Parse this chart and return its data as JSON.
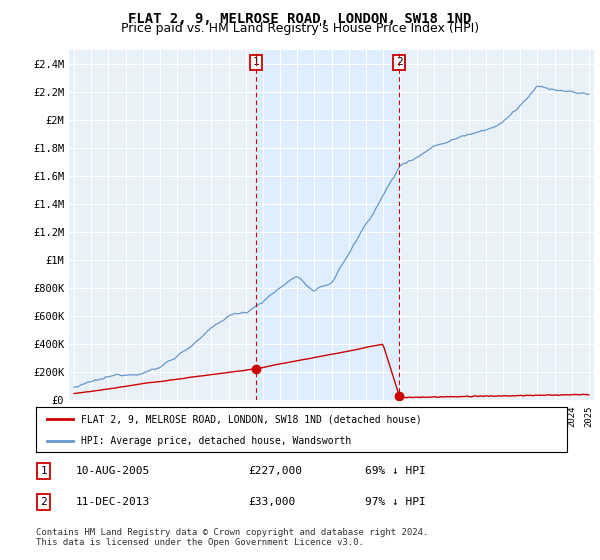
{
  "title": "FLAT 2, 9, MELROSE ROAD, LONDON, SW18 1ND",
  "subtitle": "Price paid vs. HM Land Registry's House Price Index (HPI)",
  "legend_label_red": "FLAT 2, 9, MELROSE ROAD, LONDON, SW18 1ND (detached house)",
  "legend_label_blue": "HPI: Average price, detached house, Wandsworth",
  "annotation1_date": "10-AUG-2005",
  "annotation1_price": "£227,000",
  "annotation1_hpi": "69% ↓ HPI",
  "annotation2_date": "11-DEC-2013",
  "annotation2_price": "£33,000",
  "annotation2_hpi": "97% ↓ HPI",
  "footnote1": "Contains HM Land Registry data © Crown copyright and database right 2024.",
  "footnote2": "This data is licensed under the Open Government Licence v3.0.",
  "ylim": [
    0,
    2500000
  ],
  "yticks": [
    0,
    200000,
    400000,
    600000,
    800000,
    1000000,
    1200000,
    1400000,
    1600000,
    1800000,
    2000000,
    2200000,
    2400000
  ],
  "ytick_labels": [
    "£0",
    "£200K",
    "£400K",
    "£600K",
    "£800K",
    "£1M",
    "£1.2M",
    "£1.4M",
    "£1.6M",
    "£1.8M",
    "£2M",
    "£2.2M",
    "£2.4M"
  ],
  "x_start_year": 1995,
  "x_end_year": 2025,
  "purchase1_year": 2005.6,
  "purchase1_price": 227000,
  "purchase2_year": 2013.95,
  "purchase2_price": 33000,
  "red_color": "#cc0000",
  "blue_color": "#6699cc",
  "shade_color": "#ddeeff",
  "plot_bg": "#e8f0f8",
  "grid_color": "#ffffff",
  "title_fontsize": 10,
  "subtitle_fontsize": 9
}
